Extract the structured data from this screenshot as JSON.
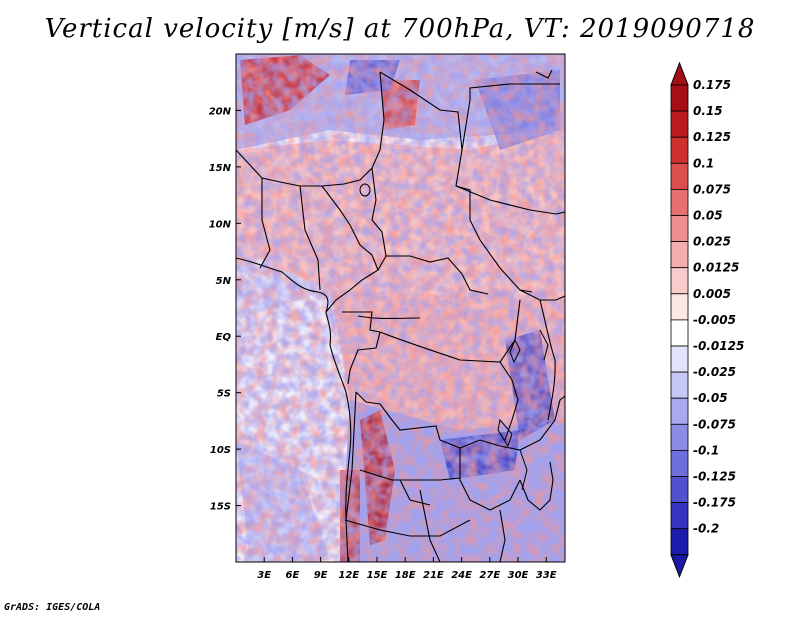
{
  "title": "Vertical velocity [m/s] at 700hPa, VT: 2019090718",
  "footer": "GrADS: IGES/COLA",
  "map": {
    "lon_range": [
      0,
      35
    ],
    "lat_range": [
      -20,
      25
    ],
    "lon_ticks": [
      {
        "value": 3,
        "label": "3E"
      },
      {
        "value": 6,
        "label": "6E"
      },
      {
        "value": 9,
        "label": "9E"
      },
      {
        "value": 12,
        "label": "12E"
      },
      {
        "value": 15,
        "label": "15E"
      },
      {
        "value": 18,
        "label": "18E"
      },
      {
        "value": 21,
        "label": "21E"
      },
      {
        "value": 24,
        "label": "24E"
      },
      {
        "value": 27,
        "label": "27E"
      },
      {
        "value": 30,
        "label": "30E"
      },
      {
        "value": 33,
        "label": "33E"
      }
    ],
    "lat_ticks": [
      {
        "value": 20,
        "label": "20N"
      },
      {
        "value": 15,
        "label": "15N"
      },
      {
        "value": 10,
        "label": "10N"
      },
      {
        "value": 5,
        "label": "5N"
      },
      {
        "value": 0,
        "label": "EQ"
      },
      {
        "value": -5,
        "label": "5S"
      },
      {
        "value": -10,
        "label": "10S"
      },
      {
        "value": -15,
        "label": "15S"
      }
    ]
  },
  "colorbar": {
    "levels": [
      {
        "label": "0.175",
        "color": "#a50f15"
      },
      {
        "label": "0.15",
        "color": "#bd1b22"
      },
      {
        "label": "0.125",
        "color": "#cf3030"
      },
      {
        "label": "0.1",
        "color": "#dc4f4f"
      },
      {
        "label": "0.075",
        "color": "#e66f6f"
      },
      {
        "label": "0.05",
        "color": "#ee8f8f"
      },
      {
        "label": "0.025",
        "color": "#f4aeae"
      },
      {
        "label": "0.0125",
        "color": "#f9cccc"
      },
      {
        "label": "0.005",
        "color": "#fce6e6"
      },
      {
        "label": "-0.005",
        "color": "#ffffff"
      },
      {
        "label": "-0.0125",
        "color": "#e2e2fb"
      },
      {
        "label": "-0.025",
        "color": "#c7c7f5"
      },
      {
        "label": "-0.05",
        "color": "#a9a9ef"
      },
      {
        "label": "-0.075",
        "color": "#8c8ce6"
      },
      {
        "label": "-0.1",
        "color": "#6f6fdb"
      },
      {
        "label": "-0.125",
        "color": "#5252cf"
      },
      {
        "label": "-0.175",
        "color": "#3434c0"
      },
      {
        "label": "-0.2",
        "color": "#1c1cac"
      }
    ],
    "top_color": "#a50f15",
    "bottom_color": "#1a1aa6"
  }
}
